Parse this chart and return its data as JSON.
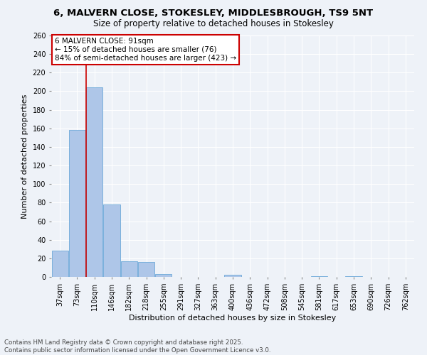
{
  "title_line1": "6, MALVERN CLOSE, STOKESLEY, MIDDLESBROUGH, TS9 5NT",
  "title_line2": "Size of property relative to detached houses in Stokesley",
  "xlabel": "Distribution of detached houses by size in Stokesley",
  "ylabel": "Number of detached properties",
  "categories": [
    "37sqm",
    "73sqm",
    "110sqm",
    "146sqm",
    "182sqm",
    "218sqm",
    "255sqm",
    "291sqm",
    "327sqm",
    "363sqm",
    "400sqm",
    "436sqm",
    "472sqm",
    "508sqm",
    "545sqm",
    "581sqm",
    "617sqm",
    "653sqm",
    "690sqm",
    "726sqm",
    "762sqm"
  ],
  "values": [
    28,
    158,
    204,
    78,
    17,
    16,
    3,
    0,
    0,
    0,
    2,
    0,
    0,
    0,
    0,
    1,
    0,
    1,
    0,
    0,
    0
  ],
  "bar_color": "#aec6e8",
  "bar_edge_color": "#5a9fd4",
  "red_line_x": 1.5,
  "annotation_line1": "6 MALVERN CLOSE: 91sqm",
  "annotation_line2": "← 15% of detached houses are smaller (76)",
  "annotation_line3": "84% of semi-detached houses are larger (423) →",
  "annotation_box_color": "#ffffff",
  "annotation_box_edge": "#cc0000",
  "red_line_color": "#cc0000",
  "ylim": [
    0,
    260
  ],
  "yticks": [
    0,
    20,
    40,
    60,
    80,
    100,
    120,
    140,
    160,
    180,
    200,
    220,
    240,
    260
  ],
  "background_color": "#eef2f8",
  "grid_color": "#ffffff",
  "footer_line1": "Contains HM Land Registry data © Crown copyright and database right 2025.",
  "footer_line2": "Contains public sector information licensed under the Open Government Licence v3.0.",
  "title_fontsize": 9.5,
  "subtitle_fontsize": 8.5,
  "axis_label_fontsize": 8,
  "tick_fontsize": 7,
  "annotation_fontsize": 7.5,
  "footer_fontsize": 6.2
}
